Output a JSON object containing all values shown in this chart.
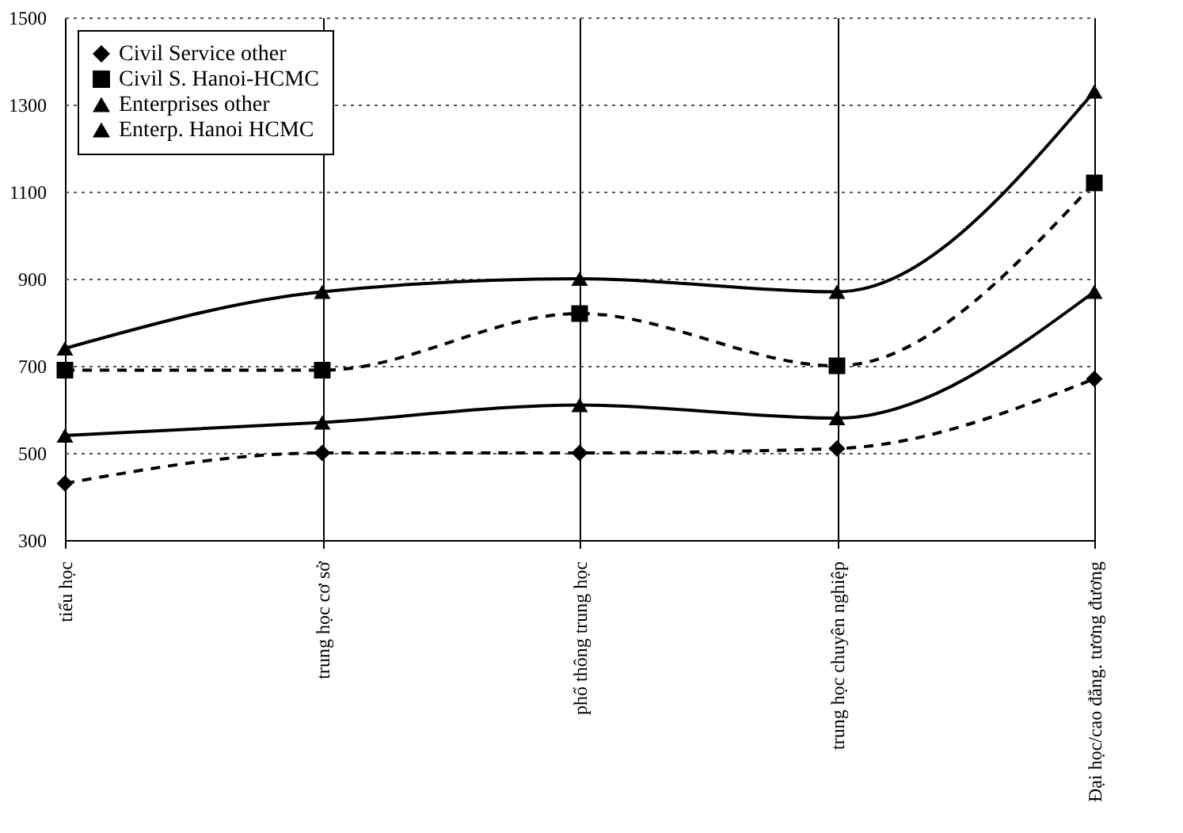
{
  "chart_data": {
    "type": "line",
    "categories": [
      "tiểu học",
      "trung học cơ sở",
      "phổ thông trung học",
      "trung học chuyên nghiệp",
      "Đại học/cao đẳng. tương đương"
    ],
    "series": [
      {
        "name": "Civil Service other",
        "color": "#000000",
        "marker": "diamond",
        "line_style": "dashed",
        "values": [
          430,
          500,
          500,
          510,
          670
        ]
      },
      {
        "name": "Civil S. Hanoi-HCMC",
        "color": "#000000",
        "marker": "square",
        "line_style": "dashed",
        "values": [
          690,
          690,
          820,
          700,
          1120
        ]
      },
      {
        "name": "Enterprises other",
        "color": "#000000",
        "marker": "triangle",
        "line_style": "solid",
        "values": [
          540,
          570,
          610,
          580,
          870
        ]
      },
      {
        "name": "Enterp. Hanoi HCMC",
        "color": "#000000",
        "marker": "triangle",
        "line_style": "solid",
        "values": [
          740,
          870,
          900,
          870,
          1330
        ]
      }
    ],
    "ylim": [
      300,
      1500
    ],
    "yticks": [
      300,
      500,
      700,
      900,
      1100,
      1300,
      1500
    ],
    "grid": true,
    "legend": "top left"
  }
}
